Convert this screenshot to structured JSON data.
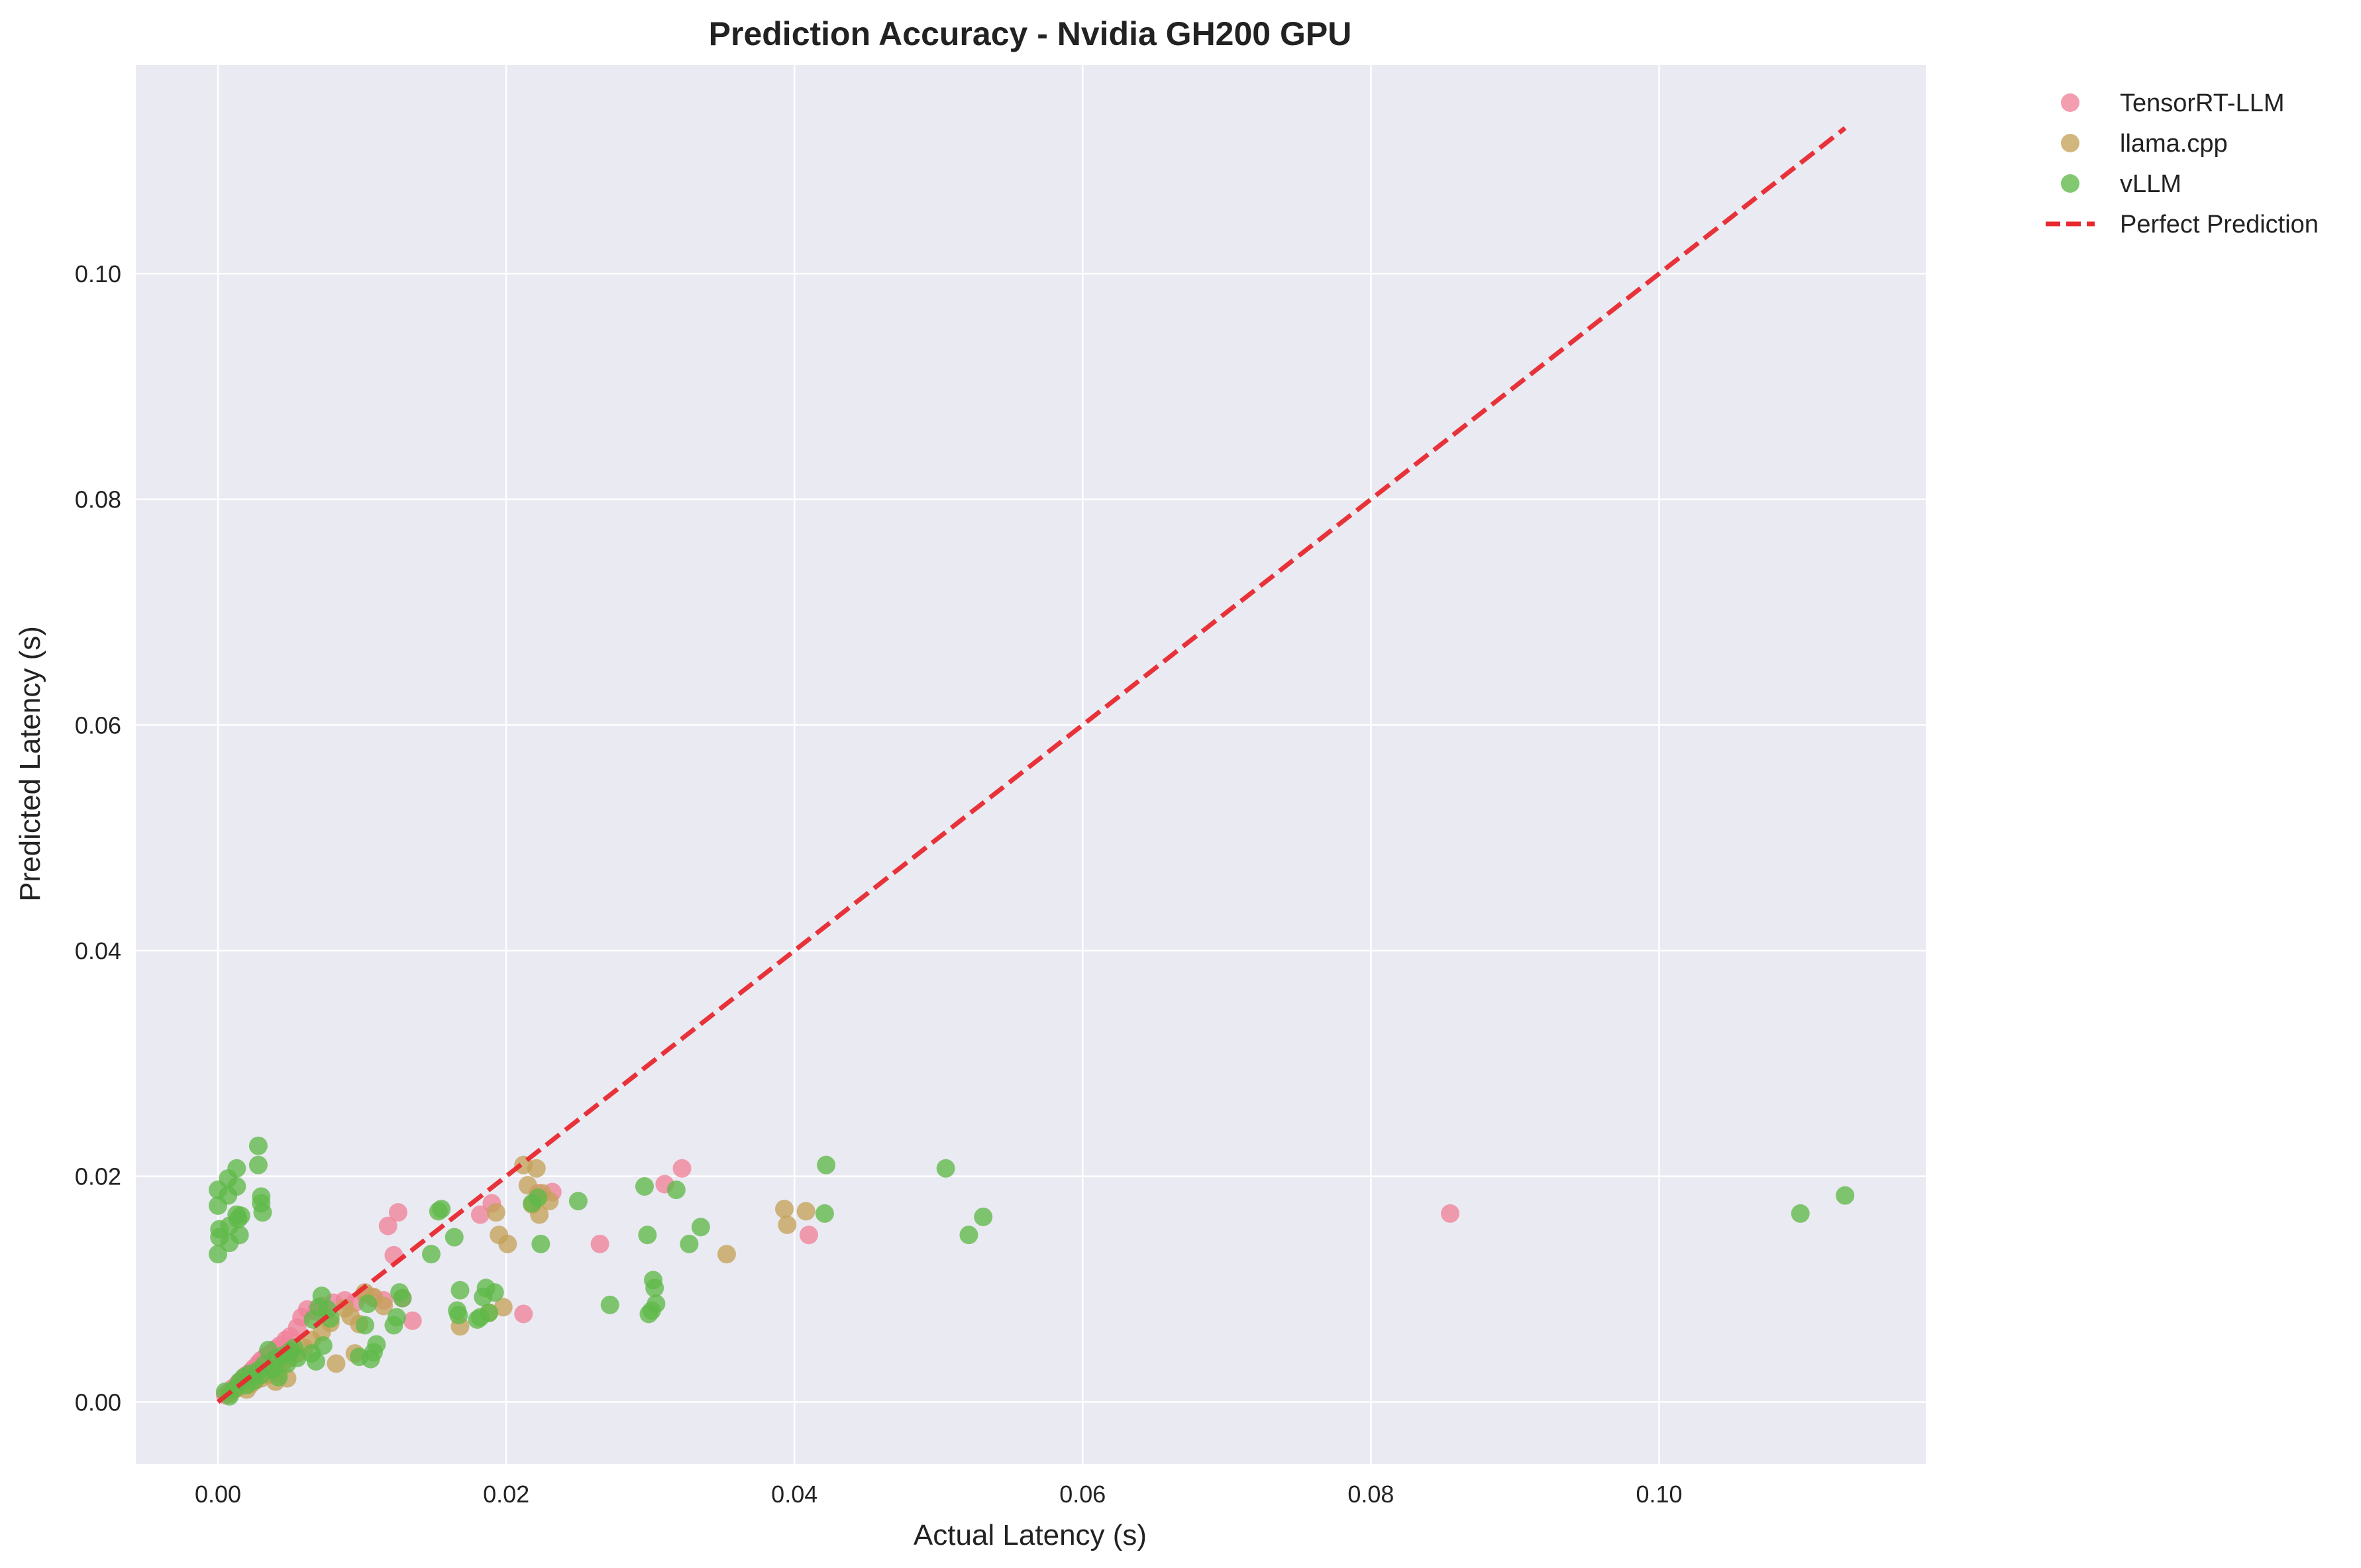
{
  "chart_data": {
    "type": "scatter",
    "title": "Prediction Accuracy - Nvidia GH200 GPU",
    "xlabel": "Actual Latency (s)",
    "ylabel": "Predicted Latency (s)",
    "xlim": [
      -0.0057,
      0.1185
    ],
    "ylim": [
      -0.0055,
      0.1185
    ],
    "xticks": [
      0.0,
      0.02,
      0.04,
      0.06,
      0.08,
      0.1
    ],
    "xtick_labels": [
      "0.00",
      "0.02",
      "0.04",
      "0.06",
      "0.08",
      "0.10"
    ],
    "yticks": [
      0.0,
      0.02,
      0.04,
      0.06,
      0.08,
      0.1
    ],
    "ytick_labels": [
      "0.00",
      "0.02",
      "0.04",
      "0.06",
      "0.08",
      "0.10"
    ],
    "grid": true,
    "legend_position": "outside-top-right",
    "series": [
      {
        "name": "TensorRT-LLM",
        "color": "#f0819a",
        "points": [
          [
            0.0005,
            0.0006
          ],
          [
            0.0008,
            0.0009
          ],
          [
            0.001,
            0.0012
          ],
          [
            0.0013,
            0.0015
          ],
          [
            0.0015,
            0.0018
          ],
          [
            0.0018,
            0.0021
          ],
          [
            0.002,
            0.0024
          ],
          [
            0.0023,
            0.0027
          ],
          [
            0.0025,
            0.003
          ],
          [
            0.0028,
            0.0034
          ],
          [
            0.003,
            0.0037
          ],
          [
            0.0033,
            0.004
          ],
          [
            0.0036,
            0.0043
          ],
          [
            0.004,
            0.0047
          ],
          [
            0.0043,
            0.005
          ],
          [
            0.0047,
            0.0055
          ],
          [
            0.005,
            0.0058
          ],
          [
            0.0055,
            0.0066
          ],
          [
            0.0058,
            0.0075
          ],
          [
            0.0062,
            0.0082
          ],
          [
            0.0068,
            0.008
          ],
          [
            0.0072,
            0.0085
          ],
          [
            0.008,
            0.0088
          ],
          [
            0.0088,
            0.009
          ],
          [
            0.0095,
            0.0088
          ],
          [
            0.0102,
            0.0095
          ],
          [
            0.0108,
            0.0092
          ],
          [
            0.0115,
            0.009
          ],
          [
            0.0118,
            0.0156
          ],
          [
            0.0122,
            0.013
          ],
          [
            0.0125,
            0.0168
          ],
          [
            0.0128,
            0.0092
          ],
          [
            0.0135,
            0.0072
          ],
          [
            0.0182,
            0.0166
          ],
          [
            0.019,
            0.0176
          ],
          [
            0.0212,
            0.0078
          ],
          [
            0.0222,
            0.0185
          ],
          [
            0.0232,
            0.0186
          ],
          [
            0.0265,
            0.014
          ],
          [
            0.031,
            0.0193
          ],
          [
            0.0322,
            0.0207
          ],
          [
            0.041,
            0.0148
          ],
          [
            0.0855,
            0.0167
          ]
        ]
      },
      {
        "name": "llama.cpp",
        "color": "#c4a25a",
        "points": [
          [
            0.0008,
            0.0007
          ],
          [
            0.001,
            0.001
          ],
          [
            0.0013,
            0.0012
          ],
          [
            0.0016,
            0.0014
          ],
          [
            0.002,
            0.0011
          ],
          [
            0.0023,
            0.0016
          ],
          [
            0.0026,
            0.0019
          ],
          [
            0.003,
            0.0021
          ],
          [
            0.0035,
            0.0024
          ],
          [
            0.0038,
            0.0029
          ],
          [
            0.004,
            0.0018
          ],
          [
            0.0042,
            0.0026
          ],
          [
            0.0045,
            0.0035
          ],
          [
            0.0048,
            0.0021
          ],
          [
            0.005,
            0.0039
          ],
          [
            0.0055,
            0.0043
          ],
          [
            0.006,
            0.0048
          ],
          [
            0.0065,
            0.0055
          ],
          [
            0.0072,
            0.0062
          ],
          [
            0.0078,
            0.007
          ],
          [
            0.0082,
            0.0034
          ],
          [
            0.0088,
            0.0083
          ],
          [
            0.0092,
            0.0076
          ],
          [
            0.0095,
            0.0043
          ],
          [
            0.0098,
            0.0069
          ],
          [
            0.0102,
            0.0097
          ],
          [
            0.0108,
            0.0093
          ],
          [
            0.0115,
            0.0085
          ],
          [
            0.0168,
            0.0067
          ],
          [
            0.0188,
            0.0079
          ],
          [
            0.0193,
            0.0168
          ],
          [
            0.0195,
            0.0148
          ],
          [
            0.0198,
            0.0084
          ],
          [
            0.0201,
            0.014
          ],
          [
            0.0212,
            0.021
          ],
          [
            0.0215,
            0.0192
          ],
          [
            0.0218,
            0.0175
          ],
          [
            0.0221,
            0.0207
          ],
          [
            0.0223,
            0.0166
          ],
          [
            0.0225,
            0.0185
          ],
          [
            0.023,
            0.0178
          ],
          [
            0.0353,
            0.0131
          ],
          [
            0.0393,
            0.0171
          ],
          [
            0.0395,
            0.0157
          ],
          [
            0.0408,
            0.0169
          ]
        ]
      },
      {
        "name": "vLLM",
        "color": "#5fb849",
        "points": [
          [
            0.0,
            0.0188
          ],
          [
            0.0,
            0.0174
          ],
          [
            0.0001,
            0.0153
          ],
          [
            0.0001,
            0.0146
          ],
          [
            0.0,
            0.0131
          ],
          [
            0.0007,
            0.0198
          ],
          [
            0.0007,
            0.0183
          ],
          [
            0.0008,
            0.0141
          ],
          [
            0.0008,
            0.0156
          ],
          [
            0.0013,
            0.0207
          ],
          [
            0.0013,
            0.0191
          ],
          [
            0.0013,
            0.0166
          ],
          [
            0.0014,
            0.0162
          ],
          [
            0.0015,
            0.0148
          ],
          [
            0.0016,
            0.0165
          ],
          [
            0.0028,
            0.0227
          ],
          [
            0.0028,
            0.021
          ],
          [
            0.003,
            0.0182
          ],
          [
            0.003,
            0.0176
          ],
          [
            0.0031,
            0.0168
          ],
          [
            0.0005,
            0.0009
          ],
          [
            0.0008,
            0.0005
          ],
          [
            0.0012,
            0.0012
          ],
          [
            0.0015,
            0.0018
          ],
          [
            0.0018,
            0.0022
          ],
          [
            0.002,
            0.0015
          ],
          [
            0.0022,
            0.0025
          ],
          [
            0.0025,
            0.0019
          ],
          [
            0.0028,
            0.0028
          ],
          [
            0.003,
            0.0024
          ],
          [
            0.0032,
            0.0033
          ],
          [
            0.0035,
            0.0046
          ],
          [
            0.0038,
            0.0029
          ],
          [
            0.004,
            0.0038
          ],
          [
            0.0042,
            0.0022
          ],
          [
            0.0045,
            0.0041
          ],
          [
            0.0048,
            0.0034
          ],
          [
            0.005,
            0.0045
          ],
          [
            0.0053,
            0.0048
          ],
          [
            0.0055,
            0.0039
          ],
          [
            0.0065,
            0.0043
          ],
          [
            0.0066,
            0.0073
          ],
          [
            0.0068,
            0.0036
          ],
          [
            0.007,
            0.0084
          ],
          [
            0.0072,
            0.0094
          ],
          [
            0.0073,
            0.005
          ],
          [
            0.0076,
            0.0082
          ],
          [
            0.0078,
            0.0074
          ],
          [
            0.0098,
            0.004
          ],
          [
            0.0102,
            0.0068
          ],
          [
            0.0104,
            0.0087
          ],
          [
            0.0106,
            0.0038
          ],
          [
            0.0108,
            0.0044
          ],
          [
            0.011,
            0.0051
          ],
          [
            0.0122,
            0.0068
          ],
          [
            0.0124,
            0.0075
          ],
          [
            0.0126,
            0.0097
          ],
          [
            0.0128,
            0.0092
          ],
          [
            0.0148,
            0.0131
          ],
          [
            0.0153,
            0.0169
          ],
          [
            0.0155,
            0.0171
          ],
          [
            0.0164,
            0.0146
          ],
          [
            0.0166,
            0.0081
          ],
          [
            0.0167,
            0.0077
          ],
          [
            0.0168,
            0.0099
          ],
          [
            0.018,
            0.0073
          ],
          [
            0.0182,
            0.0075
          ],
          [
            0.0184,
            0.0093
          ],
          [
            0.0186,
            0.0101
          ],
          [
            0.0188,
            0.0079
          ],
          [
            0.0192,
            0.0097
          ],
          [
            0.0218,
            0.0176
          ],
          [
            0.0222,
            0.0181
          ],
          [
            0.0224,
            0.014
          ],
          [
            0.025,
            0.0178
          ],
          [
            0.0272,
            0.0086
          ],
          [
            0.0296,
            0.0191
          ],
          [
            0.0298,
            0.0148
          ],
          [
            0.0299,
            0.0078
          ],
          [
            0.0301,
            0.0081
          ],
          [
            0.0302,
            0.0108
          ],
          [
            0.0303,
            0.0101
          ],
          [
            0.0304,
            0.0087
          ],
          [
            0.0318,
            0.0188
          ],
          [
            0.0327,
            0.014
          ],
          [
            0.0335,
            0.0155
          ],
          [
            0.0421,
            0.0167
          ],
          [
            0.0422,
            0.021
          ],
          [
            0.0505,
            0.0207
          ],
          [
            0.0521,
            0.0148
          ],
          [
            0.0531,
            0.0164
          ],
          [
            0.1098,
            0.0167
          ],
          [
            0.1129,
            0.0183
          ]
        ]
      }
    ],
    "reference_line": {
      "name": "Perfect Prediction",
      "color": "#e8282e",
      "style": "dashed",
      "from": [
        0.0,
        0.0
      ],
      "to": [
        0.1129,
        0.1129
      ]
    }
  }
}
